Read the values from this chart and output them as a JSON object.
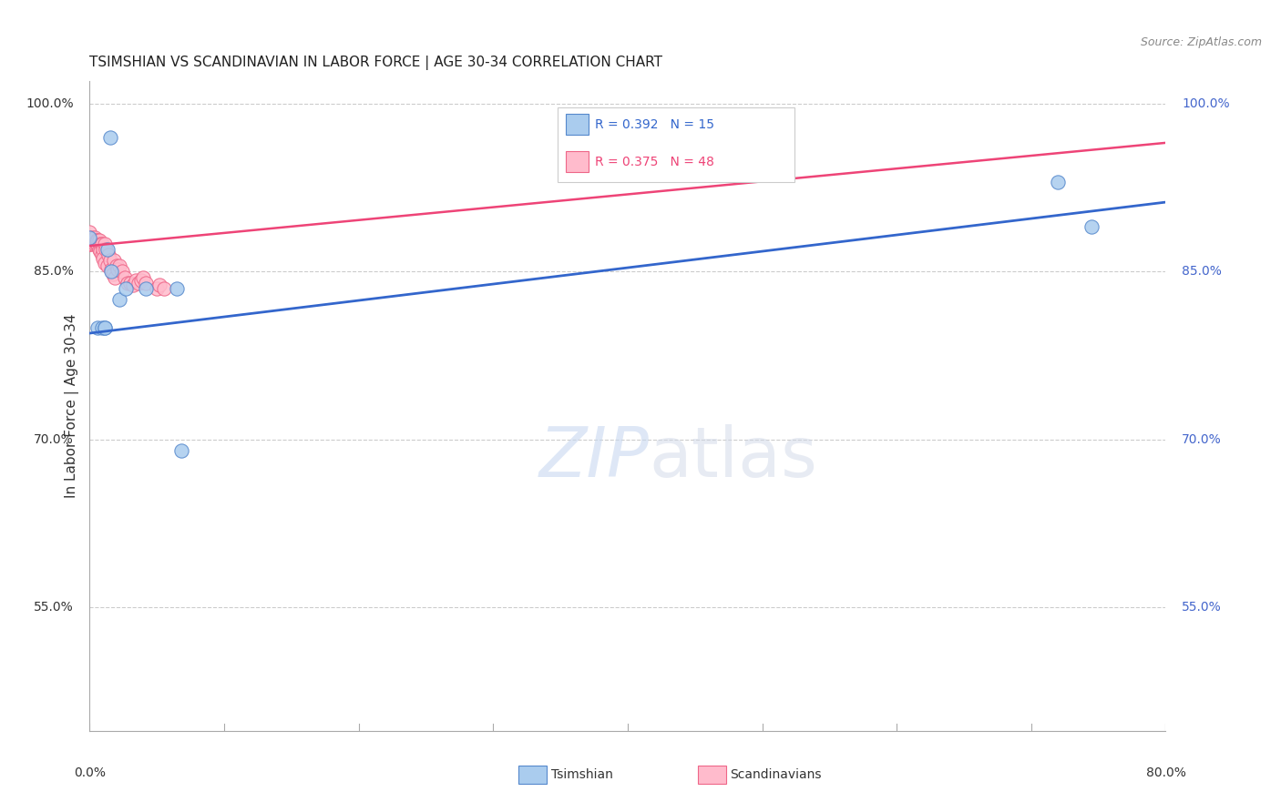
{
  "title": "TSIMSHIAN VS SCANDINAVIAN IN LABOR FORCE | AGE 30-34 CORRELATION CHART",
  "source": "Source: ZipAtlas.com",
  "ylabel": "In Labor Force | Age 30-34",
  "watermark_zip": "ZIP",
  "watermark_atlas": "atlas",
  "blue_color": "#5588CC",
  "pink_color": "#EE6688",
  "blue_fill": "#AACCEE",
  "pink_fill": "#FFBBCC",
  "legend_blue_r": "R = 0.392",
  "legend_blue_n": "N = 15",
  "legend_pink_r": "R = 0.375",
  "legend_pink_n": "N = 48",
  "legend_label_blue": "Tsimshian",
  "legend_label_pink": "Scandinavians",
  "xlim": [
    0.0,
    0.8
  ],
  "ylim": [
    0.44,
    1.02
  ],
  "ytick_positions": [
    0.55,
    0.7,
    0.85,
    1.0
  ],
  "ytick_labels": [
    "55.0%",
    "70.0%",
    "85.0%",
    "100.0%"
  ],
  "xtick_minor_positions": [
    0.0,
    0.1,
    0.2,
    0.3,
    0.4,
    0.5,
    0.6,
    0.7,
    0.8
  ],
  "tsimshian_x": [
    0.0,
    0.006,
    0.009,
    0.011,
    0.011,
    0.013,
    0.016,
    0.022,
    0.027,
    0.042,
    0.065,
    0.068,
    0.015,
    0.72,
    0.745
  ],
  "tsimshian_y": [
    0.88,
    0.8,
    0.8,
    0.8,
    0.8,
    0.87,
    0.85,
    0.825,
    0.835,
    0.835,
    0.835,
    0.69,
    0.97,
    0.93,
    0.89
  ],
  "scandinavian_x": [
    0.0,
    0.0,
    0.0,
    0.0,
    0.0,
    0.002,
    0.002,
    0.003,
    0.004,
    0.004,
    0.005,
    0.005,
    0.006,
    0.006,
    0.007,
    0.007,
    0.008,
    0.008,
    0.009,
    0.009,
    0.01,
    0.01,
    0.011,
    0.011,
    0.012,
    0.013,
    0.014,
    0.015,
    0.016,
    0.017,
    0.018,
    0.019,
    0.02,
    0.021,
    0.022,
    0.024,
    0.026,
    0.028,
    0.03,
    0.032,
    0.034,
    0.036,
    0.038,
    0.04,
    0.042,
    0.05,
    0.052,
    0.055
  ],
  "scandinavian_y": [
    0.875,
    0.875,
    0.88,
    0.88,
    0.885,
    0.875,
    0.88,
    0.878,
    0.875,
    0.88,
    0.878,
    0.875,
    0.875,
    0.878,
    0.878,
    0.87,
    0.875,
    0.868,
    0.875,
    0.865,
    0.87,
    0.862,
    0.875,
    0.858,
    0.87,
    0.855,
    0.865,
    0.86,
    0.852,
    0.848,
    0.86,
    0.845,
    0.855,
    0.852,
    0.855,
    0.85,
    0.845,
    0.84,
    0.84,
    0.838,
    0.842,
    0.84,
    0.842,
    0.845,
    0.84,
    0.835,
    0.838,
    0.835
  ],
  "blue_line_x": [
    0.0,
    0.8
  ],
  "blue_line_y": [
    0.795,
    0.912
  ],
  "pink_line_x": [
    0.0,
    0.8
  ],
  "pink_line_y": [
    0.873,
    0.965
  ],
  "grid_color": "#CCCCCC",
  "title_color": "#222222",
  "right_label_color": "#4466CC",
  "marker_size": 11,
  "source_color": "#888888"
}
